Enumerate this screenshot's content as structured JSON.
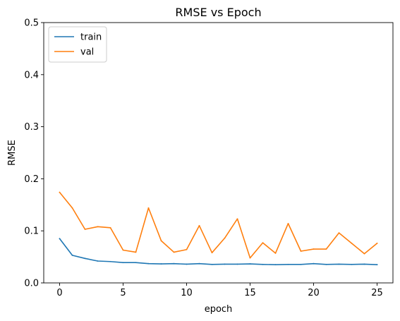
{
  "chart_data": {
    "type": "line",
    "title": "RMSE vs Epoch",
    "xlabel": "epoch",
    "ylabel": "RMSE",
    "xlim": [
      -1.25,
      26.25
    ],
    "ylim": [
      0,
      0.5
    ],
    "xticks": [
      0,
      5,
      10,
      15,
      20,
      25
    ],
    "yticks": [
      0.0,
      0.1,
      0.2,
      0.3,
      0.4,
      0.5
    ],
    "ytick_labels": [
      "0.0",
      "0.1",
      "0.2",
      "0.3",
      "0.4",
      "0.5"
    ],
    "grid": false,
    "legend_position": "upper-left",
    "x": [
      0,
      1,
      2,
      3,
      4,
      5,
      6,
      7,
      8,
      9,
      10,
      11,
      12,
      13,
      14,
      15,
      16,
      17,
      18,
      19,
      20,
      21,
      22,
      23,
      24,
      25
    ],
    "series": [
      {
        "name": "train",
        "color": "#1f77b4",
        "values": [
          0.085,
          0.053,
          0.047,
          0.042,
          0.041,
          0.039,
          0.039,
          0.037,
          0.0365,
          0.037,
          0.036,
          0.037,
          0.0355,
          0.036,
          0.036,
          0.0365,
          0.0355,
          0.035,
          0.0355,
          0.0355,
          0.037,
          0.0355,
          0.036,
          0.0355,
          0.036,
          0.035
        ]
      },
      {
        "name": "val",
        "color": "#ff7f0e",
        "values": [
          0.174,
          0.144,
          0.103,
          0.108,
          0.106,
          0.063,
          0.059,
          0.144,
          0.081,
          0.059,
          0.064,
          0.11,
          0.058,
          0.086,
          0.123,
          0.048,
          0.077,
          0.057,
          0.114,
          0.061,
          0.065,
          0.065,
          0.096,
          0.076,
          0.056,
          0.076
        ]
      }
    ]
  }
}
